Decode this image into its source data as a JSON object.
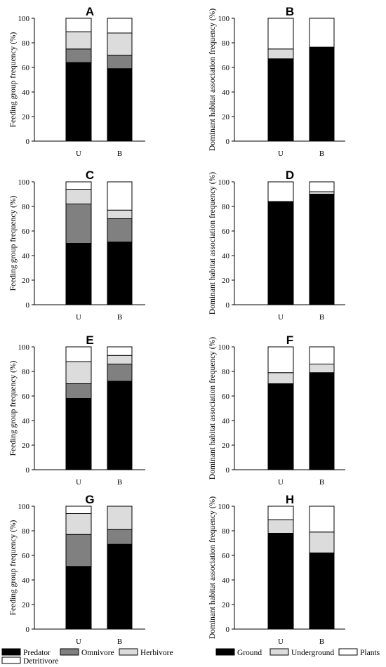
{
  "colors": {
    "Predator": "#000000",
    "Omnivore": "#808080",
    "Herbivore": "#dcdcdc",
    "Detritivore": "#ffffff",
    "Ground": "#000000",
    "Underground": "#dcdcdc",
    "Plants": "#ffffff"
  },
  "legends": {
    "feeding": [
      "Predator",
      "Omnivore",
      "Herbivore",
      "Detritivore"
    ],
    "habitat": [
      "Ground",
      "Underground",
      "Plants"
    ]
  },
  "chart_data": [
    {
      "type": "bar",
      "stacked": true,
      "panel": "A",
      "column": "left",
      "row": 0,
      "ylabel": "Feeding group frequency (%)",
      "ylim": [
        0,
        100
      ],
      "yticks": [
        0,
        20,
        40,
        60,
        80,
        100
      ],
      "categories": [
        "U",
        "B"
      ],
      "series": [
        {
          "name": "Predator",
          "values": [
            64,
            59
          ]
        },
        {
          "name": "Omnivore",
          "values": [
            11,
            11
          ]
        },
        {
          "name": "Herbivore",
          "values": [
            14,
            18
          ]
        },
        {
          "name": "Detritivore",
          "values": [
            11,
            12
          ]
        }
      ]
    },
    {
      "type": "bar",
      "stacked": true,
      "panel": "B",
      "column": "right",
      "row": 0,
      "ylabel": "Dominant habitat association frequency (%)",
      "ylim": [
        0,
        100
      ],
      "yticks": [
        0,
        20,
        40,
        60,
        80,
        100
      ],
      "categories": [
        "U",
        "B"
      ],
      "series": [
        {
          "name": "Ground",
          "values": [
            67,
            76
          ]
        },
        {
          "name": "Underground",
          "values": [
            8,
            0.5
          ]
        },
        {
          "name": "Plants",
          "values": [
            25,
            23.5
          ]
        }
      ]
    },
    {
      "type": "bar",
      "stacked": true,
      "panel": "C",
      "column": "left",
      "row": 1,
      "ylabel": "Feeding group frequency (%)",
      "ylim": [
        0,
        100
      ],
      "yticks": [
        0,
        20,
        40,
        60,
        80,
        100
      ],
      "categories": [
        "U",
        "B"
      ],
      "series": [
        {
          "name": "Predator",
          "values": [
            50,
            51
          ]
        },
        {
          "name": "Omnivore",
          "values": [
            32,
            19
          ]
        },
        {
          "name": "Herbivore",
          "values": [
            12,
            7
          ]
        },
        {
          "name": "Detritivore",
          "values": [
            6,
            23
          ]
        }
      ]
    },
    {
      "type": "bar",
      "stacked": true,
      "panel": "D",
      "column": "right",
      "row": 1,
      "ylabel": "Dominant habitat association frequency (%)",
      "ylim": [
        0,
        100
      ],
      "yticks": [
        0,
        20,
        40,
        60,
        80,
        100
      ],
      "categories": [
        "U",
        "B"
      ],
      "series": [
        {
          "name": "Ground",
          "values": [
            84,
            90
          ]
        },
        {
          "name": "Underground",
          "values": [
            0,
            2
          ]
        },
        {
          "name": "Plants",
          "values": [
            16,
            8
          ]
        }
      ]
    },
    {
      "type": "bar",
      "stacked": true,
      "panel": "E",
      "column": "left",
      "row": 2,
      "ylabel": "Feeding group frequency (%)",
      "ylim": [
        0,
        100
      ],
      "yticks": [
        0,
        20,
        40,
        60,
        80,
        100
      ],
      "categories": [
        "U",
        "B"
      ],
      "series": [
        {
          "name": "Predator",
          "values": [
            58,
            72
          ]
        },
        {
          "name": "Omnivore",
          "values": [
            12,
            14
          ]
        },
        {
          "name": "Herbivore",
          "values": [
            18,
            7
          ]
        },
        {
          "name": "Detritivore",
          "values": [
            12,
            7
          ]
        }
      ]
    },
    {
      "type": "bar",
      "stacked": true,
      "panel": "F",
      "column": "right",
      "row": 2,
      "ylabel": "Dominant habitat association frequency (%)",
      "ylim": [
        0,
        100
      ],
      "yticks": [
        0,
        20,
        40,
        60,
        80,
        100
      ],
      "categories": [
        "U",
        "B"
      ],
      "series": [
        {
          "name": "Ground",
          "values": [
            70,
            79
          ]
        },
        {
          "name": "Underground",
          "values": [
            9,
            7
          ]
        },
        {
          "name": "Plants",
          "values": [
            21,
            14
          ]
        }
      ]
    },
    {
      "type": "bar",
      "stacked": true,
      "panel": "G",
      "column": "left",
      "row": 3,
      "ylabel": "Feeding group frequency (%)",
      "ylim": [
        0,
        100
      ],
      "yticks": [
        0,
        20,
        40,
        60,
        80,
        100
      ],
      "categories": [
        "U",
        "B"
      ],
      "series": [
        {
          "name": "Predator",
          "values": [
            51,
            69
          ]
        },
        {
          "name": "Omnivore",
          "values": [
            26,
            12
          ]
        },
        {
          "name": "Herbivore",
          "values": [
            17,
            19
          ]
        },
        {
          "name": "Detritivore",
          "values": [
            6,
            0
          ]
        }
      ]
    },
    {
      "type": "bar",
      "stacked": true,
      "panel": "H",
      "column": "right",
      "row": 3,
      "ylabel": "Dominant habitat association frequency (%)",
      "ylim": [
        0,
        100
      ],
      "yticks": [
        0,
        20,
        40,
        60,
        80,
        100
      ],
      "categories": [
        "U",
        "B"
      ],
      "series": [
        {
          "name": "Ground",
          "values": [
            78,
            62
          ]
        },
        {
          "name": "Underground",
          "values": [
            11,
            17
          ]
        },
        {
          "name": "Plants",
          "values": [
            11,
            21
          ]
        }
      ]
    }
  ]
}
